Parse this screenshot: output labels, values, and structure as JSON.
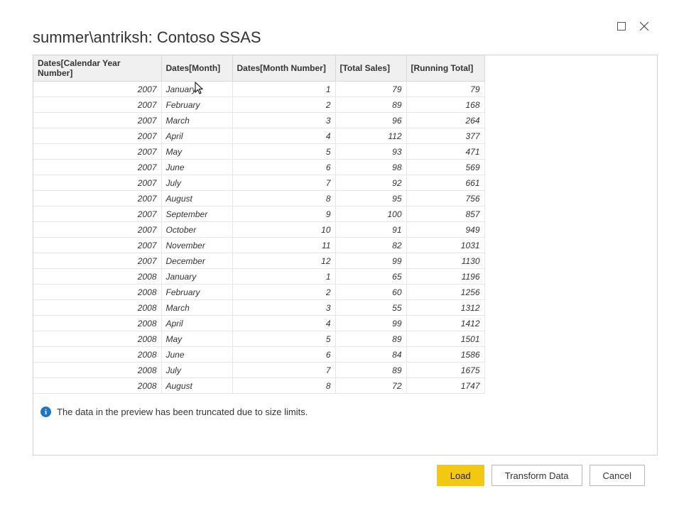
{
  "window": {
    "title": "summer\\antriksh: Contoso SSAS"
  },
  "table": {
    "columns": [
      "Dates[Calendar Year Number]",
      "Dates[Month]",
      "Dates[Month Number]",
      "[Total Sales]",
      "[Running Total]"
    ],
    "col_classes": [
      "col-year num",
      "col-month",
      "col-mnum num",
      "col-sales num",
      "col-run num"
    ],
    "rows": [
      [
        "2007",
        "January",
        "1",
        "79",
        "79"
      ],
      [
        "2007",
        "February",
        "2",
        "89",
        "168"
      ],
      [
        "2007",
        "March",
        "3",
        "96",
        "264"
      ],
      [
        "2007",
        "April",
        "4",
        "112",
        "377"
      ],
      [
        "2007",
        "May",
        "5",
        "93",
        "471"
      ],
      [
        "2007",
        "June",
        "6",
        "98",
        "569"
      ],
      [
        "2007",
        "July",
        "7",
        "92",
        "661"
      ],
      [
        "2007",
        "August",
        "8",
        "95",
        "756"
      ],
      [
        "2007",
        "September",
        "9",
        "100",
        "857"
      ],
      [
        "2007",
        "October",
        "10",
        "91",
        "949"
      ],
      [
        "2007",
        "November",
        "11",
        "82",
        "1031"
      ],
      [
        "2007",
        "December",
        "12",
        "99",
        "1130"
      ],
      [
        "2008",
        "January",
        "1",
        "65",
        "1196"
      ],
      [
        "2008",
        "February",
        "2",
        "60",
        "1256"
      ],
      [
        "2008",
        "March",
        "3",
        "55",
        "1312"
      ],
      [
        "2008",
        "April",
        "4",
        "99",
        "1412"
      ],
      [
        "2008",
        "May",
        "5",
        "89",
        "1501"
      ],
      [
        "2008",
        "June",
        "6",
        "84",
        "1586"
      ],
      [
        "2008",
        "July",
        "7",
        "89",
        "1675"
      ],
      [
        "2008",
        "August",
        "8",
        "72",
        "1747"
      ]
    ],
    "numeric_cols": [
      true,
      false,
      true,
      true,
      true
    ]
  },
  "info": {
    "text": "The data in the preview has been truncated due to size limits."
  },
  "buttons": {
    "load": "Load",
    "transform": "Transform Data",
    "cancel": "Cancel"
  },
  "colors": {
    "primary_button": "#f2c811",
    "border": "#d0d0d0",
    "header_bg": "#f0f0f0",
    "info_icon": "#1f74c4"
  }
}
